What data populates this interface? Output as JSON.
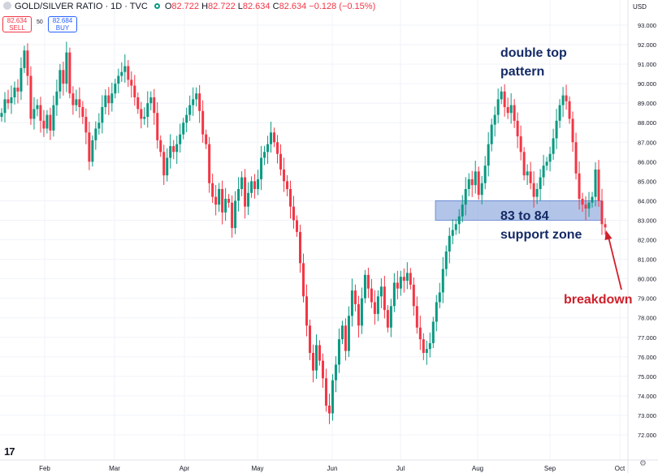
{
  "header": {
    "symbol": "GOLD/SILVER RATIO · 1D · TVC",
    "ohlc": {
      "o_label": "O",
      "o": "82.722",
      "h_label": "H",
      "h": "82.722",
      "l_label": "L",
      "l": "82.634",
      "c_label": "C",
      "c": "82.634"
    },
    "change": "−0.128 (−0.15%)",
    "sell_price": "82.634",
    "sell_label": "SELL",
    "buy_price": "82.684",
    "buy_label": "BUY",
    "spread": "50"
  },
  "currency": "USD",
  "colors": {
    "up": "#089981",
    "down": "#f23645",
    "zone": "#7f9fd9",
    "annotation_blue": "#152a66",
    "annotation_red": "#d0202a"
  },
  "chart_data": {
    "type": "candlestick",
    "ylim": [
      71,
      93.5
    ],
    "y_ticks": [
      "72.000",
      "73.000",
      "74.000",
      "75.000",
      "76.000",
      "77.000",
      "78.000",
      "79.000",
      "80.000",
      "81.000",
      "82.000",
      "83.000",
      "84.000",
      "85.000",
      "86.000",
      "87.000",
      "88.000",
      "89.000",
      "90.000",
      "91.000",
      "92.000",
      "93.000"
    ],
    "x_tick_labels": [
      "Feb",
      "Mar",
      "Apr",
      "May",
      "Jun",
      "Jul",
      "Aug",
      "Sep",
      "Oct"
    ],
    "closes": [
      88.5,
      89.2,
      89.0,
      89.3,
      89.8,
      89.6,
      90.8,
      91.7,
      90.4,
      88.2,
      88.7,
      88.9,
      88.1,
      87.7,
      88.4,
      87.6,
      88.9,
      89.6,
      90.7,
      90.0,
      91.6,
      89.5,
      88.9,
      89.2,
      88.8,
      88.3,
      87.5,
      86.0,
      87.1,
      87.7,
      88.0,
      88.8,
      89.4,
      89.0,
      89.5,
      90.0,
      90.4,
      90.6,
      90.9,
      90.2,
      89.9,
      89.3,
      88.7,
      88.2,
      88.3,
      89.0,
      89.3,
      88.5,
      87.1,
      86.5,
      85.3,
      86.2,
      86.8,
      86.5,
      86.9,
      87.4,
      88.0,
      88.4,
      88.9,
      89.2,
      89.5,
      88.6,
      87.4,
      86.9,
      84.9,
      84.2,
      83.8,
      84.6,
      83.4,
      84.1,
      83.9,
      82.6,
      84.0,
      84.6,
      85.2,
      83.7,
      84.4,
      85.0,
      84.6,
      85.1,
      86.2,
      86.5,
      86.9,
      87.5,
      87.0,
      86.4,
      85.6,
      85.0,
      84.6,
      83.7,
      83.0,
      82.4,
      80.8,
      79.1,
      77.6,
      76.2,
      75.3,
      76.6,
      75.8,
      74.9,
      73.5,
      73.1,
      74.8,
      75.6,
      76.9,
      77.6,
      76.3,
      78.1,
      79.4,
      78.7,
      77.6,
      79.0,
      80.2,
      79.5,
      78.8,
      78.2,
      79.1,
      79.6,
      78.4,
      77.5,
      78.6,
      79.8,
      79.5,
      80.1,
      79.9,
      80.3,
      79.7,
      78.6,
      77.5,
      76.9,
      76.2,
      76.4,
      76.7,
      77.8,
      78.8,
      79.3,
      80.5,
      81.4,
      82.2,
      82.5,
      82.8,
      83.2,
      83.8,
      84.6,
      85.1,
      84.8,
      85.5,
      84.3,
      84.9,
      85.8,
      86.9,
      87.9,
      88.4,
      89.2,
      89.6,
      88.8,
      88.5,
      88.9,
      88.1,
      87.3,
      86.5,
      85.3,
      85.5,
      84.9,
      84.2,
      84.6,
      85.2,
      85.8,
      86.0,
      86.4,
      87.2,
      88.1,
      88.9,
      89.4,
      89.1,
      88.2,
      87.0,
      85.4,
      84.1,
      83.8,
      83.6,
      83.9,
      84.2,
      85.6,
      84.0,
      82.8,
      82.634
    ],
    "annotations": [
      {
        "text": "double top",
        "line2": "pattern"
      },
      {
        "text": "83 to 84",
        "line2": "support zone"
      },
      {
        "text": "breakdown"
      }
    ],
    "support_zone": [
      83.0,
      84.0
    ]
  }
}
